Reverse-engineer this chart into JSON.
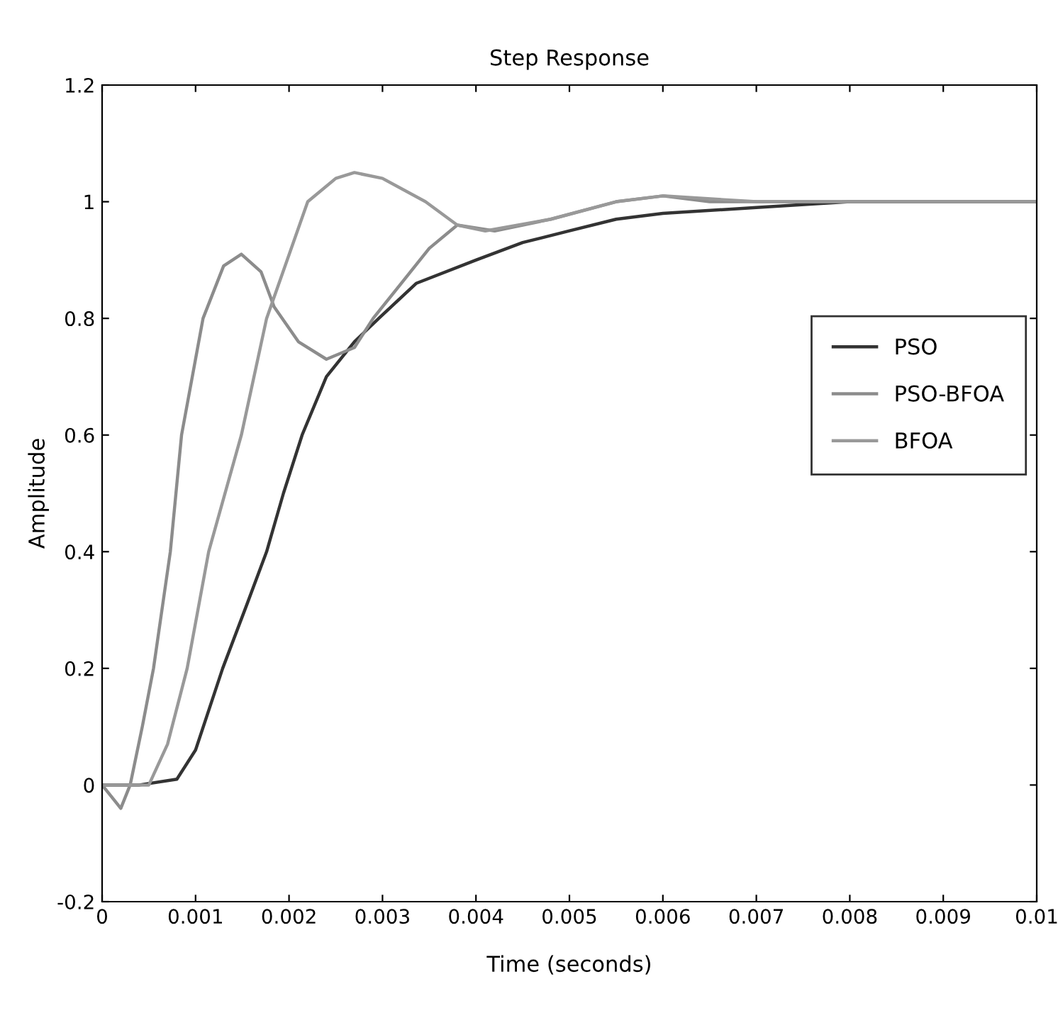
{
  "chart_data": {
    "type": "line",
    "title": "Step Response",
    "xlabel": "Time (seconds)",
    "ylabel": "Amplitude",
    "xlim": [
      0,
      0.01
    ],
    "ylim": [
      -0.2,
      1.2
    ],
    "xticks": [
      0,
      0.001,
      0.002,
      0.003,
      0.004,
      0.005,
      0.006,
      0.007,
      0.008,
      0.009,
      0.01
    ],
    "yticks": [
      -0.2,
      0,
      0.2,
      0.4,
      0.6,
      0.8,
      1,
      1.2
    ],
    "grid": false,
    "legend": "right",
    "line_style": "solid",
    "marker": "none",
    "series": [
      {
        "name": "PSO",
        "color": "#333333",
        "x": [
          0,
          0.0004,
          0.0008,
          0.001,
          0.00129,
          0.00155,
          0.00176,
          0.00194,
          0.00214,
          0.0024,
          0.0027,
          0.00296,
          0.00336,
          0.004,
          0.0045,
          0.005,
          0.0055,
          0.006,
          0.007,
          0.008,
          0.009,
          0.01
        ],
        "values": [
          0,
          0,
          0.01,
          0.06,
          0.2,
          0.31,
          0.4,
          0.5,
          0.6,
          0.7,
          0.76,
          0.8,
          0.86,
          0.9,
          0.93,
          0.95,
          0.97,
          0.98,
          0.99,
          1,
          1,
          1
        ]
      },
      {
        "name": "PSO-BFOA",
        "color": "#8c8c8c",
        "x": [
          0,
          0.0001,
          0.0002,
          0.0003,
          0.00043,
          0.00055,
          0.00073,
          0.00085,
          0.00108,
          0.0013,
          0.00149,
          0.0017,
          0.00184,
          0.0021,
          0.0024,
          0.0027,
          0.0029,
          0.0032,
          0.0035,
          0.0038,
          0.0042,
          0.0048,
          0.0055,
          0.006,
          0.0065,
          0.007,
          0.008,
          0.009,
          0.01
        ],
        "values": [
          0,
          -0.02,
          -0.04,
          0,
          0.1,
          0.2,
          0.4,
          0.6,
          0.8,
          0.89,
          0.91,
          0.88,
          0.82,
          0.76,
          0.73,
          0.75,
          0.8,
          0.86,
          0.92,
          0.96,
          0.95,
          0.97,
          1.0,
          1.01,
          1.0,
          1.0,
          1.0,
          1.0,
          1.0
        ]
      },
      {
        "name": "BFOA",
        "color": "#999999",
        "x": [
          0,
          0.0004,
          0.0005,
          0.0007,
          0.00091,
          0.00114,
          0.00149,
          0.00176,
          0.0022,
          0.0025,
          0.0027,
          0.003,
          0.00346,
          0.0038,
          0.0041,
          0.0048,
          0.0055,
          0.006,
          0.007,
          0.008,
          0.009,
          0.01
        ],
        "values": [
          0,
          0,
          0,
          0.07,
          0.2,
          0.4,
          0.6,
          0.8,
          1.0,
          1.04,
          1.05,
          1.04,
          1.0,
          0.96,
          0.95,
          0.97,
          1.0,
          1.01,
          1.0,
          1.0,
          1.0,
          1.0
        ]
      }
    ]
  }
}
